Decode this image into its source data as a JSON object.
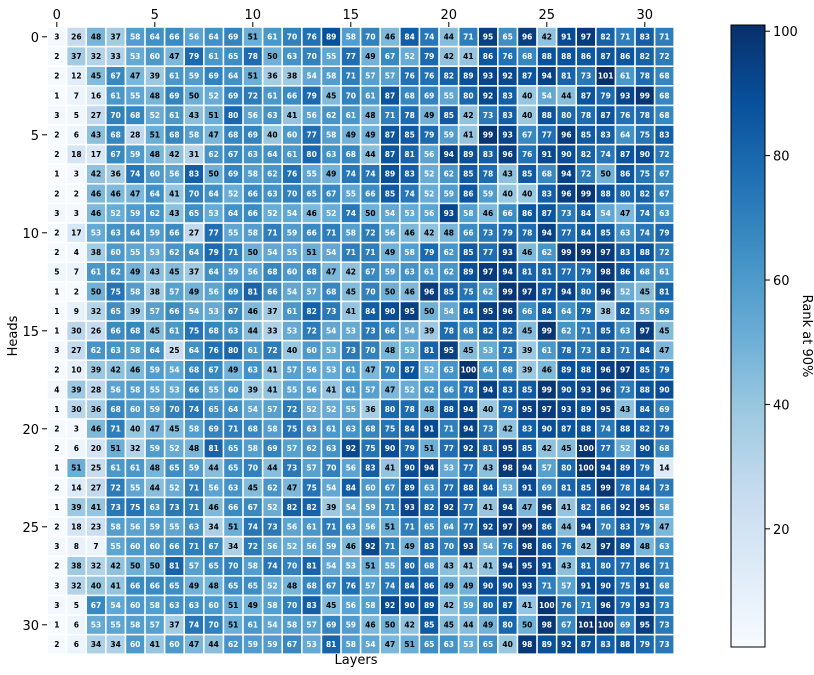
{
  "chart_data": {
    "type": "heatmap",
    "title": "",
    "xlabel": "Layers",
    "ylabel": "Heads",
    "colorbar_label": "Rank at 90%",
    "colorbar_ticks": [
      20,
      40,
      60,
      80,
      100
    ],
    "xticks": [
      0,
      5,
      10,
      15,
      20,
      25,
      30
    ],
    "yticks": [
      0,
      5,
      10,
      15,
      20,
      25,
      30
    ],
    "vmin": 1,
    "vmax": 101,
    "colormap": "Blues",
    "values": [
      [
        3,
        26,
        48,
        37,
        58,
        64,
        66,
        56,
        64,
        69,
        51,
        61,
        70,
        76,
        89,
        58,
        70,
        46,
        84,
        74,
        44,
        71,
        95,
        65,
        96,
        42,
        91,
        97,
        82,
        71,
        83,
        71
      ],
      [
        2,
        37,
        32,
        33,
        53,
        60,
        47,
        79,
        61,
        65,
        78,
        50,
        63,
        70,
        55,
        77,
        49,
        67,
        52,
        79,
        42,
        41,
        86,
        76,
        68,
        88,
        88,
        86,
        87,
        86,
        82,
        72
      ],
      [
        2,
        12,
        45,
        67,
        47,
        39,
        61,
        59,
        69,
        64,
        51,
        36,
        38,
        54,
        58,
        71,
        57,
        57,
        76,
        76,
        82,
        89,
        93,
        92,
        87,
        94,
        81,
        73,
        101,
        61,
        78,
        68
      ],
      [
        1,
        7,
        16,
        61,
        55,
        48,
        69,
        50,
        52,
        69,
        72,
        61,
        66,
        79,
        45,
        70,
        61,
        87,
        68,
        69,
        55,
        80,
        92,
        83,
        40,
        54,
        44,
        87,
        79,
        93,
        99,
        68
      ],
      [
        3,
        5,
        27,
        70,
        68,
        52,
        61,
        43,
        51,
        80,
        56,
        63,
        41,
        56,
        62,
        61,
        48,
        71,
        78,
        49,
        85,
        42,
        73,
        83,
        40,
        88,
        80,
        78,
        87,
        76,
        78,
        68
      ],
      [
        2,
        6,
        43,
        68,
        28,
        51,
        68,
        58,
        47,
        68,
        69,
        40,
        60,
        77,
        58,
        49,
        49,
        87,
        85,
        79,
        59,
        41,
        99,
        93,
        67,
        77,
        96,
        85,
        83,
        64,
        75,
        83
      ],
      [
        2,
        18,
        17,
        67,
        59,
        48,
        42,
        31,
        62,
        67,
        63,
        64,
        61,
        80,
        63,
        68,
        44,
        87,
        81,
        56,
        94,
        89,
        83,
        96,
        76,
        91,
        90,
        82,
        74,
        87,
        90,
        72
      ],
      [
        1,
        3,
        42,
        36,
        74,
        60,
        56,
        83,
        50,
        69,
        58,
        62,
        76,
        55,
        49,
        74,
        74,
        89,
        83,
        52,
        62,
        85,
        78,
        43,
        85,
        68,
        94,
        72,
        50,
        86,
        75,
        67
      ],
      [
        2,
        2,
        46,
        46,
        47,
        64,
        41,
        70,
        64,
        52,
        66,
        63,
        70,
        65,
        67,
        55,
        66,
        85,
        74,
        52,
        59,
        86,
        59,
        40,
        40,
        83,
        96,
        99,
        88,
        80,
        82,
        67
      ],
      [
        3,
        3,
        46,
        52,
        59,
        62,
        43,
        65,
        53,
        64,
        66,
        52,
        54,
        46,
        52,
        74,
        50,
        54,
        53,
        56,
        93,
        58,
        46,
        66,
        86,
        87,
        73,
        84,
        54,
        47,
        74,
        63
      ],
      [
        2,
        17,
        53,
        63,
        64,
        59,
        66,
        27,
        77,
        55,
        58,
        71,
        59,
        66,
        71,
        58,
        72,
        56,
        46,
        42,
        48,
        66,
        73,
        79,
        78,
        94,
        77,
        84,
        85,
        63,
        74,
        79
      ],
      [
        2,
        4,
        38,
        60,
        55,
        53,
        62,
        64,
        79,
        71,
        50,
        54,
        55,
        51,
        54,
        71,
        71,
        49,
        58,
        79,
        62,
        85,
        77,
        93,
        46,
        62,
        99,
        99,
        97,
        83,
        88,
        72
      ],
      [
        5,
        7,
        61,
        62,
        49,
        43,
        45,
        37,
        64,
        59,
        56,
        68,
        60,
        68,
        47,
        42,
        67,
        59,
        63,
        61,
        62,
        89,
        97,
        94,
        81,
        81,
        77,
        79,
        98,
        86,
        68,
        61
      ],
      [
        1,
        2,
        50,
        75,
        58,
        38,
        57,
        49,
        56,
        69,
        81,
        66,
        54,
        57,
        68,
        45,
        70,
        50,
        46,
        96,
        85,
        75,
        62,
        99,
        97,
        87,
        94,
        80,
        96,
        52,
        45,
        81
      ],
      [
        1,
        9,
        32,
        65,
        39,
        57,
        66,
        54,
        53,
        67,
        46,
        37,
        61,
        82,
        73,
        41,
        84,
        90,
        95,
        50,
        54,
        84,
        95,
        96,
        66,
        84,
        64,
        79,
        38,
        82,
        55,
        69
      ],
      [
        1,
        30,
        26,
        66,
        68,
        45,
        61,
        75,
        68,
        63,
        44,
        33,
        53,
        72,
        54,
        53,
        73,
        66,
        54,
        39,
        78,
        68,
        82,
        82,
        45,
        99,
        62,
        71,
        85,
        63,
        97,
        45
      ],
      [
        3,
        27,
        62,
        63,
        58,
        64,
        25,
        64,
        76,
        80,
        61,
        72,
        40,
        60,
        53,
        73,
        70,
        48,
        53,
        81,
        95,
        45,
        53,
        73,
        39,
        61,
        78,
        73,
        83,
        71,
        84,
        47
      ],
      [
        2,
        10,
        39,
        42,
        46,
        59,
        54,
        68,
        67,
        49,
        63,
        41,
        57,
        56,
        53,
        61,
        47,
        70,
        87,
        52,
        63,
        100,
        64,
        68,
        39,
        46,
        89,
        88,
        96,
        97,
        85,
        79
      ],
      [
        4,
        39,
        28,
        56,
        58,
        55,
        53,
        66,
        55,
        60,
        39,
        41,
        55,
        56,
        41,
        61,
        57,
        47,
        52,
        62,
        66,
        78,
        94,
        83,
        85,
        99,
        90,
        93,
        96,
        73,
        88,
        90
      ],
      [
        1,
        30,
        36,
        68,
        60,
        59,
        70,
        74,
        65,
        64,
        54,
        57,
        72,
        52,
        52,
        55,
        36,
        80,
        78,
        48,
        88,
        94,
        40,
        79,
        95,
        97,
        93,
        89,
        95,
        43,
        84,
        69
      ],
      [
        2,
        3,
        46,
        71,
        40,
        47,
        45,
        58,
        69,
        71,
        68,
        58,
        75,
        63,
        61,
        63,
        68,
        75,
        84,
        91,
        71,
        94,
        73,
        42,
        83,
        90,
        87,
        88,
        74,
        88,
        82,
        79
      ],
      [
        2,
        6,
        20,
        51,
        32,
        59,
        52,
        48,
        81,
        65,
        58,
        69,
        57,
        62,
        63,
        92,
        75,
        90,
        79,
        51,
        77,
        92,
        81,
        95,
        85,
        42,
        45,
        100,
        77,
        52,
        90,
        68
      ],
      [
        1,
        51,
        25,
        61,
        61,
        48,
        65,
        59,
        44,
        65,
        70,
        44,
        73,
        57,
        70,
        56,
        83,
        41,
        90,
        94,
        53,
        77,
        43,
        98,
        94,
        57,
        80,
        100,
        94,
        89,
        79,
        14
      ],
      [
        2,
        14,
        27,
        72,
        55,
        44,
        52,
        71,
        56,
        63,
        45,
        62,
        47,
        75,
        54,
        84,
        60,
        67,
        89,
        63,
        77,
        88,
        84,
        53,
        91,
        69,
        81,
        85,
        99,
        78,
        84,
        73
      ],
      [
        1,
        39,
        41,
        73,
        75,
        63,
        73,
        71,
        46,
        66,
        67,
        52,
        82,
        82,
        39,
        54,
        59,
        71,
        93,
        82,
        92,
        77,
        41,
        94,
        47,
        96,
        41,
        82,
        86,
        92,
        95,
        58
      ],
      [
        2,
        18,
        23,
        58,
        56,
        59,
        55,
        63,
        34,
        51,
        74,
        73,
        56,
        61,
        71,
        63,
        56,
        51,
        71,
        65,
        64,
        77,
        92,
        97,
        99,
        86,
        44,
        94,
        70,
        83,
        79,
        47
      ],
      [
        3,
        8,
        7,
        55,
        60,
        60,
        66,
        71,
        67,
        34,
        72,
        56,
        52,
        56,
        59,
        46,
        92,
        71,
        49,
        83,
        70,
        93,
        54,
        76,
        98,
        86,
        76,
        42,
        97,
        89,
        48,
        63
      ],
      [
        2,
        38,
        32,
        42,
        50,
        50,
        81,
        57,
        65,
        70,
        58,
        74,
        70,
        81,
        54,
        53,
        51,
        55,
        80,
        68,
        43,
        41,
        41,
        94,
        95,
        91,
        43,
        81,
        80,
        77,
        86,
        71
      ],
      [
        3,
        32,
        40,
        41,
        66,
        66,
        65,
        49,
        48,
        65,
        65,
        52,
        48,
        68,
        67,
        76,
        57,
        74,
        84,
        86,
        49,
        49,
        90,
        90,
        93,
        71,
        57,
        91,
        90,
        75,
        91,
        68
      ],
      [
        3,
        5,
        67,
        54,
        60,
        58,
        63,
        63,
        60,
        51,
        49,
        58,
        70,
        83,
        45,
        56,
        58,
        92,
        90,
        89,
        42,
        59,
        80,
        87,
        41,
        100,
        76,
        71,
        96,
        79,
        93,
        73
      ],
      [
        1,
        6,
        53,
        55,
        58,
        57,
        37,
        74,
        70,
        51,
        61,
        54,
        58,
        57,
        69,
        59,
        46,
        50,
        42,
        85,
        45,
        44,
        49,
        80,
        50,
        98,
        67,
        101,
        100,
        69,
        95,
        73
      ],
      [
        2,
        6,
        34,
        34,
        60,
        41,
        60,
        47,
        44,
        62,
        59,
        59,
        67,
        53,
        81,
        58,
        54,
        47,
        51,
        65,
        63,
        53,
        65,
        40,
        98,
        89,
        92,
        87,
        83,
        88,
        79,
        73
      ]
    ]
  }
}
